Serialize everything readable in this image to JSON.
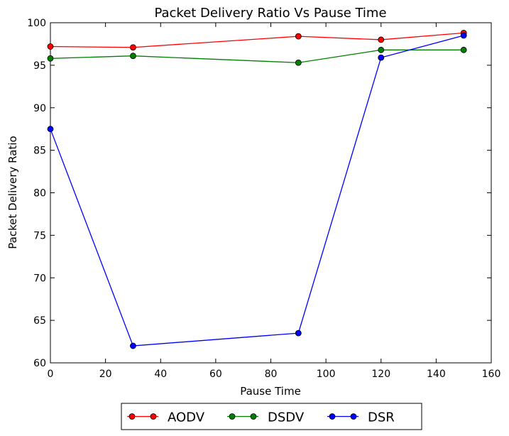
{
  "chart_data": {
    "type": "line",
    "title": "Packet Delivery Ratio Vs Pause Time",
    "xlabel": "Pause Time",
    "ylabel": "Packet Delivery Ratio",
    "xlim": [
      0,
      160
    ],
    "ylim": [
      60,
      100
    ],
    "xticks": [
      0,
      20,
      40,
      60,
      80,
      100,
      120,
      140,
      160
    ],
    "yticks": [
      60,
      65,
      70,
      75,
      80,
      85,
      90,
      95,
      100
    ],
    "grid": false,
    "legend_position": "bottom-center",
    "series": [
      {
        "name": "AODV",
        "color": "#ff0000",
        "x": [
          0,
          30,
          90,
          120,
          150
        ],
        "y": [
          97.2,
          97.1,
          98.4,
          98.0,
          98.8
        ]
      },
      {
        "name": "DSDV",
        "color": "#008000",
        "x": [
          0,
          30,
          90,
          120,
          150
        ],
        "y": [
          95.8,
          96.1,
          95.3,
          96.8,
          96.8
        ]
      },
      {
        "name": "DSR",
        "color": "#0000ff",
        "x": [
          0,
          30,
          90,
          120,
          150
        ],
        "y": [
          87.5,
          62.0,
          63.5,
          95.9,
          98.5
        ]
      }
    ]
  }
}
